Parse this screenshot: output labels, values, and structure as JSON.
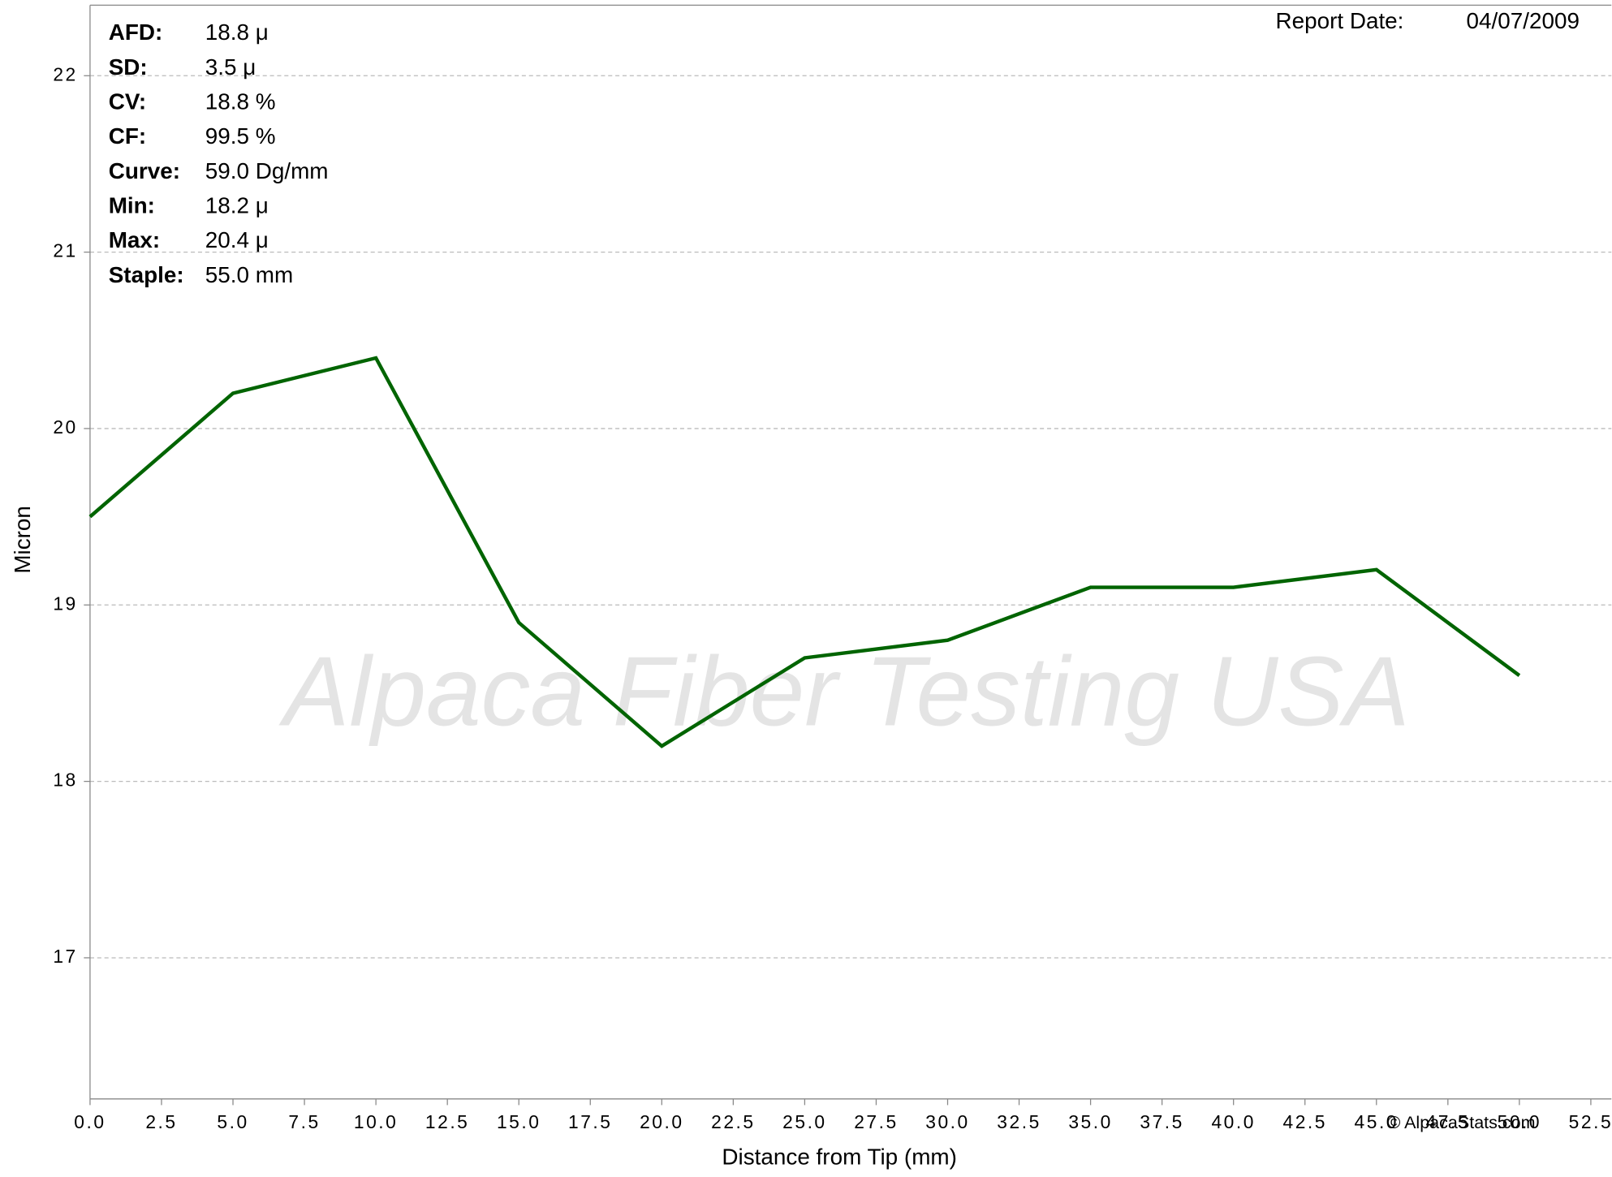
{
  "chart_data": {
    "type": "line",
    "x_label": "Distance from Tip (mm)",
    "y_label": "Micron",
    "x": [
      0,
      5,
      10,
      15,
      20,
      25,
      30,
      35,
      40,
      45,
      50
    ],
    "series": [
      {
        "name": "Micron",
        "color": "#006400",
        "values": [
          19.5,
          20.2,
          20.4,
          18.9,
          18.2,
          18.7,
          18.8,
          19.1,
          19.1,
          19.2,
          18.6
        ]
      }
    ],
    "xlim": [
      0,
      52.5
    ],
    "xticks": [
      {
        "value": 0,
        "label": "0.0"
      },
      2.5,
      {
        "value": 5,
        "label": "5.0"
      },
      7.5,
      {
        "value": 10,
        "label": "10.0"
      },
      12.5,
      {
        "value": 15,
        "label": "15.0"
      },
      17.5,
      {
        "value": 20,
        "label": "20.0"
      },
      22.5,
      {
        "value": 25,
        "label": "25.0"
      },
      27.5,
      {
        "value": 30,
        "label": "30.0"
      },
      32.5,
      {
        "value": 35,
        "label": "35.0"
      },
      37.5,
      {
        "value": 40,
        "label": "40.0"
      },
      42.5,
      {
        "value": 45,
        "label": "45.0"
      },
      47.5,
      {
        "value": 50,
        "label": "50.0"
      },
      52.5
    ],
    "ylim": [
      16.2,
      22.4
    ],
    "yticks": [
      17,
      18,
      19,
      20,
      21,
      22
    ],
    "grid": true,
    "stats": [
      {
        "label": "AFD:",
        "value": "18.8 μ"
      },
      {
        "label": "SD:",
        "value": "3.5 μ"
      },
      {
        "label": "CV:",
        "value": "18.8 %"
      },
      {
        "label": "CF:",
        "value": "99.5 %"
      },
      {
        "label": "Curve:",
        "value": "59.0 Dg/mm"
      },
      {
        "label": "Min:",
        "value": "18.2 μ"
      },
      {
        "label": "Max:",
        "value": "20.4 μ"
      },
      {
        "label": "Staple:",
        "value": "55.0 mm"
      }
    ],
    "report_date_label": "Report Date:",
    "report_date": "04/07/2009",
    "watermark": "Alpaca Fiber Testing USA",
    "copyright": "© AlpacaStats.com"
  }
}
